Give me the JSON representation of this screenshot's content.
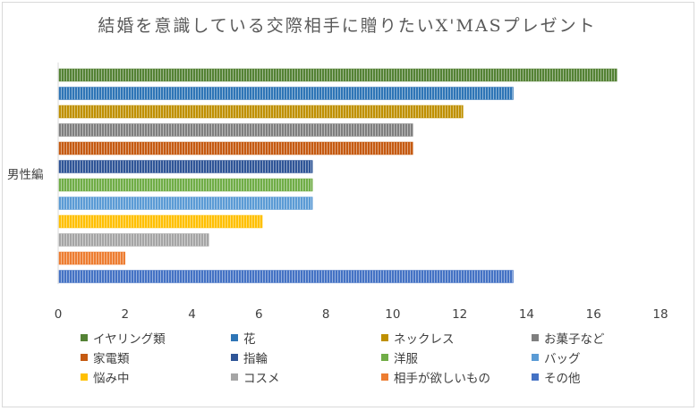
{
  "chart_data": {
    "type": "bar",
    "orientation": "horizontal",
    "title": "結婚を意識している交際相手に贈りたいX'MASプレゼント",
    "category": "男性編",
    "xlim": [
      0,
      18
    ],
    "ticks": [
      0,
      2,
      4,
      6,
      8,
      10,
      12,
      14,
      16,
      18
    ],
    "legend_position": "bottom",
    "grid": false,
    "series": [
      {
        "name": "イヤリング類",
        "value": 16.7,
        "color": "#548235"
      },
      {
        "name": "花",
        "value": 13.6,
        "color": "#2e75b6"
      },
      {
        "name": "ネックレス",
        "value": 12.1,
        "color": "#bf9000"
      },
      {
        "name": "お菓子など",
        "value": 10.6,
        "color": "#7f7f7f"
      },
      {
        "name": "家電類",
        "value": 10.6,
        "color": "#c55a11"
      },
      {
        "name": "指輪",
        "value": 7.6,
        "color": "#2f5597"
      },
      {
        "name": "洋服",
        "value": 7.6,
        "color": "#70ad47"
      },
      {
        "name": "バッグ",
        "value": 7.6,
        "color": "#5b9bd5"
      },
      {
        "name": "悩み中",
        "value": 6.1,
        "color": "#ffc000"
      },
      {
        "name": "コスメ",
        "value": 4.5,
        "color": "#a5a5a5"
      },
      {
        "name": "相手が欲しいもの",
        "value": 2.0,
        "color": "#ed7d31"
      },
      {
        "name": "その他",
        "value": 13.6,
        "color": "#4472c4"
      }
    ]
  }
}
